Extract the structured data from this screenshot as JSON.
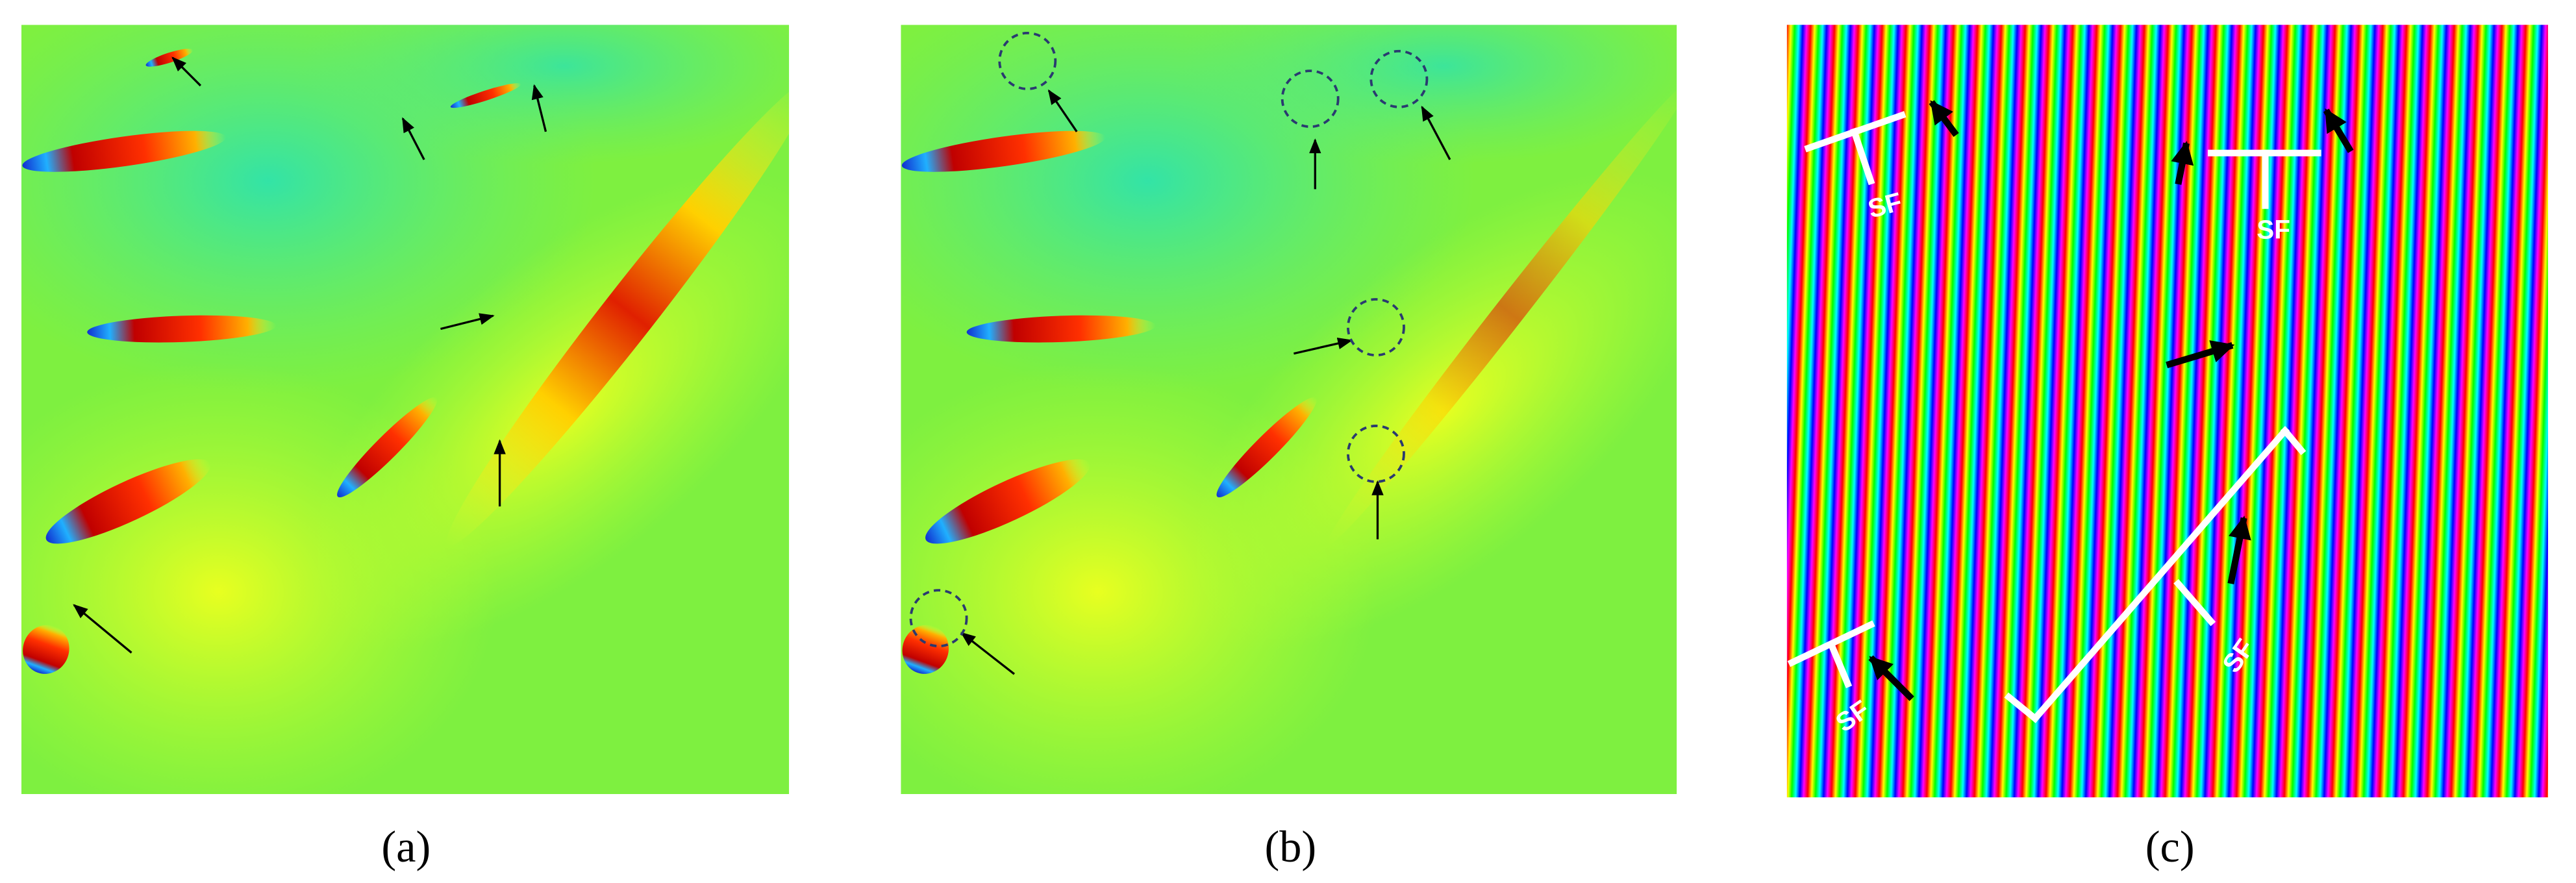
{
  "panels": [
    {
      "label": "(a)"
    },
    {
      "label": "(b)"
    },
    {
      "label": "(c)",
      "annotations": [
        "SF",
        "SF",
        "SF",
        "SF"
      ]
    }
  ]
}
